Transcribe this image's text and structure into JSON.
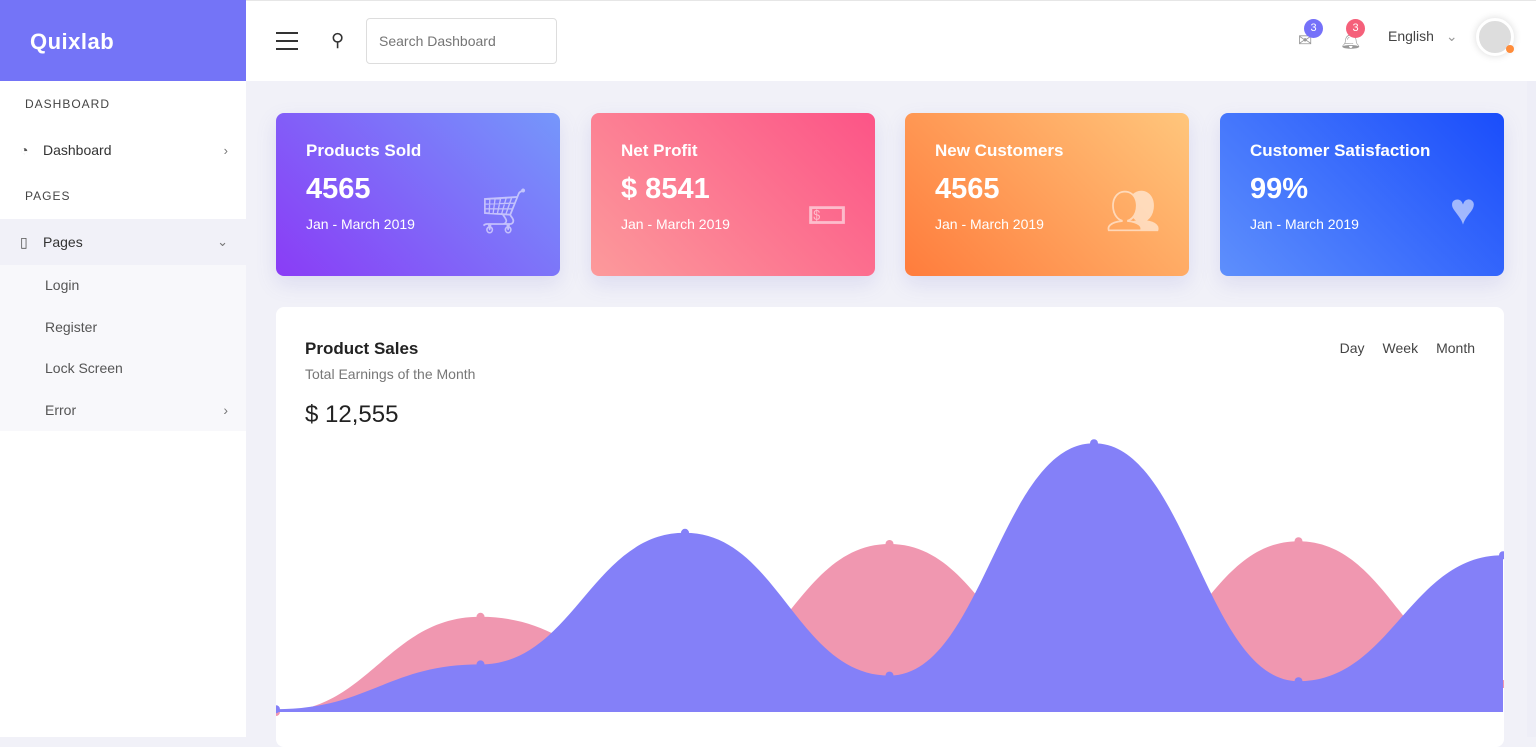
{
  "brand": "Quixlab",
  "sidebar": {
    "sections": [
      "DASHBOARD",
      "PAGES"
    ],
    "dashboard": "Dashboard",
    "pages": "Pages",
    "sub": [
      "Login",
      "Register",
      "Lock Screen",
      "Error"
    ]
  },
  "header": {
    "search_placeholder": "Search Dashboard",
    "mail_count": "3",
    "notif_count": "3",
    "language": "English"
  },
  "cards": [
    {
      "title": "Products Sold",
      "value": "4565",
      "sub": "Jan - March 2019",
      "icon": "cart-icon"
    },
    {
      "title": "Net Profit",
      "value": "$ 8541",
      "sub": "Jan - March 2019",
      "icon": "money-icon"
    },
    {
      "title": "New Customers",
      "value": "4565",
      "sub": "Jan - March 2019",
      "icon": "users-icon"
    },
    {
      "title": "Customer Satisfaction",
      "value": "99%",
      "sub": "Jan - March 2019",
      "icon": "heart-icon"
    }
  ],
  "colors": {
    "accent": "#7474f7",
    "purple_series": "#8480f8",
    "pink_series": "#f097b0"
  },
  "panel": {
    "title": "Product Sales",
    "subtitle": "Total Earnings of the Month",
    "value": "$ 12,555",
    "ranges": [
      "Day",
      "Week",
      "Month"
    ]
  },
  "chart_data": {
    "type": "area",
    "x": [
      1,
      2,
      3,
      4,
      5,
      6,
      7
    ],
    "ylim": [
      0,
      100
    ],
    "grid": false,
    "series": [
      {
        "color": "#f097b0",
        "values": [
          0,
          34,
          10,
          60,
          10,
          61,
          10
        ]
      },
      {
        "color": "#8480f8",
        "values": [
          1,
          17,
          64,
          13,
          96,
          11,
          56
        ]
      }
    ]
  }
}
